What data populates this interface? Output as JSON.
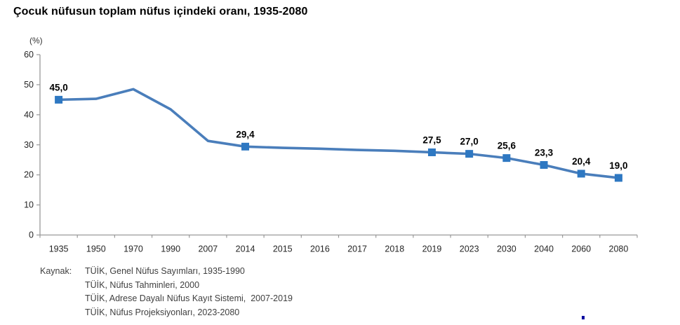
{
  "title": "Çocuk nüfusun toplam nüfus içindeki oranı, 1935-2080",
  "y_axis_unit": "(%)",
  "source": {
    "label": "Kaynak:",
    "lines": [
      "TÜİK, Genel Nüfus Sayımları, 1935-1990",
      "TÜİK, Nüfus Tahminleri, 2000",
      "TÜİK, Adrese Dayalı Nüfus Kayıt Sistemi,  2007-2019",
      "TÜİK, Nüfus Projeksiyonları, 2023-2080"
    ]
  },
  "chart_data": {
    "type": "line",
    "title": "Çocuk nüfusun toplam nüfus içindeki oranı, 1935-2080",
    "xlabel": "",
    "ylabel": "(%)",
    "categories": [
      "1935",
      "1950",
      "1970",
      "1990",
      "2007",
      "2014",
      "2015",
      "2016",
      "2017",
      "2018",
      "2019",
      "2023",
      "2030",
      "2040",
      "2060",
      "2080"
    ],
    "values": [
      45.0,
      45.3,
      48.5,
      41.8,
      31.3,
      29.4,
      29.0,
      28.7,
      28.3,
      28.0,
      27.5,
      27.0,
      25.6,
      23.3,
      20.4,
      19.0
    ],
    "data_labels": [
      "45,0",
      null,
      null,
      null,
      null,
      "29,4",
      null,
      null,
      null,
      null,
      "27,5",
      "27,0",
      "25,6",
      "23,3",
      "20,4",
      "19,0"
    ],
    "ylim": [
      0,
      60
    ],
    "yticks": [
      0,
      10,
      20,
      30,
      40,
      50,
      60
    ],
    "grid": false,
    "legend_position": "none",
    "line_color": "#4a7ebb",
    "marker_color": "#2e78c2",
    "marker_shape": "square",
    "axis_color": "#999999",
    "tick_label_color": "#262626",
    "data_label_color": "#000000"
  }
}
